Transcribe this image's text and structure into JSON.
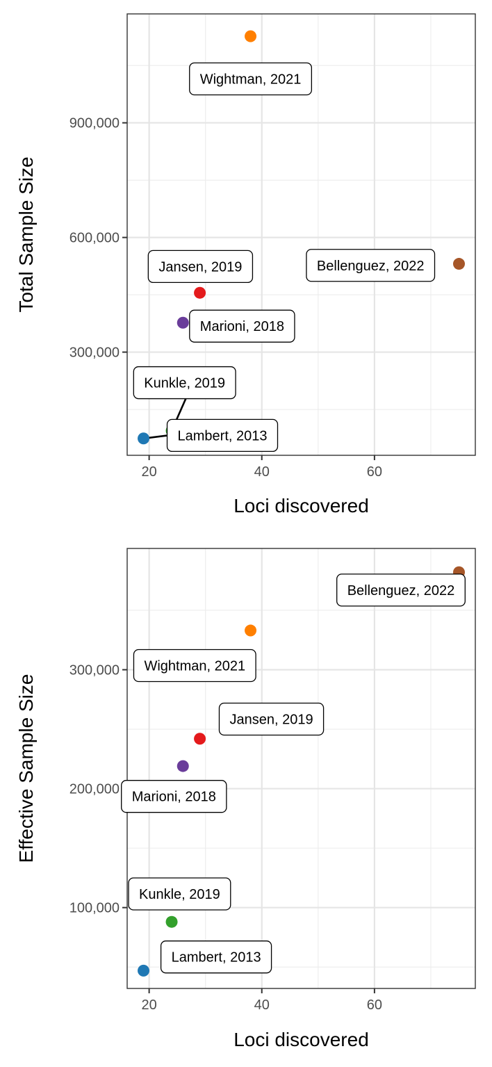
{
  "chart_data": [
    {
      "type": "scatter",
      "title": "",
      "xlabel": "Loci discovered",
      "ylabel": "Total Sample Size",
      "xlim": [
        16.1,
        77.9
      ],
      "ylim": [
        30000,
        1185000
      ],
      "x_ticks": [
        20,
        40,
        60
      ],
      "x_tick_labels": [
        "20",
        "40",
        "60"
      ],
      "y_ticks": [
        300000,
        600000,
        900000
      ],
      "y_tick_labels": [
        "300,000",
        "600,000",
        "900,000"
      ],
      "grid": true,
      "legend": "none",
      "points": [
        {
          "label": "Wightman, 2021",
          "x": 38,
          "y": 1126563,
          "color": "#FF7F00"
        },
        {
          "label": "Bellenguez, 2022",
          "x": 75,
          "y": 531000,
          "color": "#A65628"
        },
        {
          "label": "Jansen, 2019",
          "x": 29,
          "y": 455258,
          "color": "#E41A1C"
        },
        {
          "label": "Marioni, 2018",
          "x": 26,
          "y": 377012,
          "color": "#6A3D9A"
        },
        {
          "label": "Kunkle, 2019",
          "x": 24,
          "y": 94437,
          "color": "#33A02C"
        },
        {
          "label": "Lambert, 2013",
          "x": 19,
          "y": 74046,
          "color": "#1F78B4"
        }
      ]
    },
    {
      "type": "scatter",
      "title": "",
      "xlabel": "Loci discovered",
      "ylabel": "Effective Sample Size",
      "xlim": [
        16.1,
        77.9
      ],
      "ylim": [
        32000,
        402000
      ],
      "x_ticks": [
        20,
        40,
        60
      ],
      "x_tick_labels": [
        "20",
        "40",
        "60"
      ],
      "y_ticks": [
        100000,
        200000,
        300000
      ],
      "y_tick_labels": [
        "100,000",
        "200,000",
        "300,000"
      ],
      "grid": true,
      "legend": "none",
      "points": [
        {
          "label": "Bellenguez, 2022",
          "x": 75,
          "y": 382000,
          "color": "#A65628"
        },
        {
          "label": "Wightman, 2021",
          "x": 38,
          "y": 333000,
          "color": "#FF7F00"
        },
        {
          "label": "Jansen, 2019",
          "x": 29,
          "y": 242000,
          "color": "#E41A1C"
        },
        {
          "label": "Marioni, 2018",
          "x": 26,
          "y": 219000,
          "color": "#6A3D9A"
        },
        {
          "label": "Kunkle, 2019",
          "x": 24,
          "y": 88000,
          "color": "#33A02C"
        },
        {
          "label": "Lambert, 2013",
          "x": 19,
          "y": 47000,
          "color": "#1F78B4"
        }
      ]
    }
  ]
}
